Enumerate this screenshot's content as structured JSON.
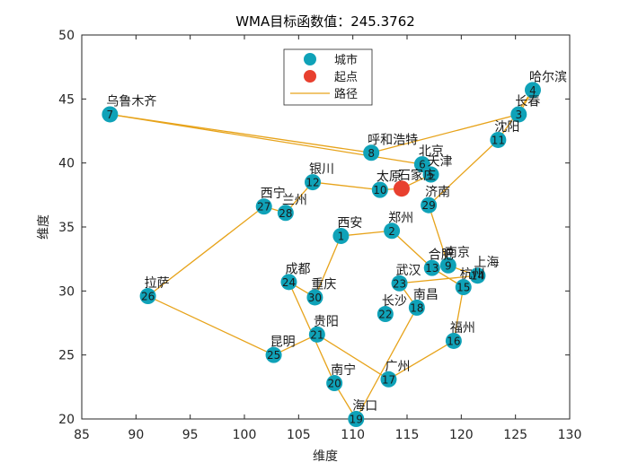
{
  "chart_data": {
    "type": "scatter",
    "title": "WMA目标函数值：245.3762",
    "xlabel": "维度",
    "ylabel": "维度",
    "xlim": [
      85,
      130
    ],
    "ylim": [
      20,
      50
    ],
    "xticks": [
      "85",
      "90",
      "95",
      "100",
      "105",
      "110",
      "115",
      "120",
      "125",
      "130"
    ],
    "yticks": [
      "20",
      "25",
      "30",
      "35",
      "40",
      "45",
      "50"
    ],
    "legend": {
      "position": "top-center",
      "entries": [
        {
          "label": "城市",
          "kind": "marker",
          "color": "#0fa2b8"
        },
        {
          "label": "起点",
          "kind": "marker",
          "color": "#e8402f"
        },
        {
          "label": "路径",
          "kind": "line",
          "color": "#e7a31a"
        }
      ]
    },
    "colors": {
      "city": "#0fa2b8",
      "start": "#e8402f",
      "path": "#e7a31a"
    },
    "start": {
      "name": "石家庄",
      "x": 114.5,
      "y": 38.0
    },
    "cities": [
      {
        "id": "1",
        "name": "西安",
        "x": 108.9,
        "y": 34.3
      },
      {
        "id": "2",
        "name": "郑州",
        "x": 113.6,
        "y": 34.7
      },
      {
        "id": "3",
        "name": "长春",
        "x": 125.3,
        "y": 43.8
      },
      {
        "id": "4",
        "name": "哈尔滨",
        "x": 126.6,
        "y": 45.7
      },
      {
        "id": "5",
        "name": "天津",
        "x": 117.2,
        "y": 39.1
      },
      {
        "id": "6",
        "name": "北京",
        "x": 116.4,
        "y": 39.9
      },
      {
        "id": "7",
        "name": "乌鲁木齐",
        "x": 87.6,
        "y": 43.8
      },
      {
        "id": "8",
        "name": "呼和浩特",
        "x": 111.7,
        "y": 40.8
      },
      {
        "id": "9",
        "name": "南京",
        "x": 118.8,
        "y": 32.0
      },
      {
        "id": "10",
        "name": "太原",
        "x": 112.5,
        "y": 37.9
      },
      {
        "id": "11",
        "name": "沈阳",
        "x": 123.4,
        "y": 41.8
      },
      {
        "id": "12",
        "name": "银川",
        "x": 106.3,
        "y": 38.5
      },
      {
        "id": "13",
        "name": "合肥",
        "x": 117.3,
        "y": 31.8
      },
      {
        "id": "14",
        "name": "上海",
        "x": 121.5,
        "y": 31.2
      },
      {
        "id": "15",
        "name": "杭州",
        "x": 120.2,
        "y": 30.3
      },
      {
        "id": "16",
        "name": "福州",
        "x": 119.3,
        "y": 26.1
      },
      {
        "id": "17",
        "name": "广州",
        "x": 113.3,
        "y": 23.1
      },
      {
        "id": "18",
        "name": "南昌",
        "x": 115.9,
        "y": 28.7
      },
      {
        "id": "19",
        "name": "海口",
        "x": 110.3,
        "y": 20.0
      },
      {
        "id": "20",
        "name": "南宁",
        "x": 108.3,
        "y": 22.8
      },
      {
        "id": "21",
        "name": "贵阳",
        "x": 106.7,
        "y": 26.6
      },
      {
        "id": "22",
        "name": "长沙",
        "x": 113.0,
        "y": 28.2
      },
      {
        "id": "23",
        "name": "武汉",
        "x": 114.3,
        "y": 30.6
      },
      {
        "id": "24",
        "name": "成都",
        "x": 104.1,
        "y": 30.7
      },
      {
        "id": "25",
        "name": "昆明",
        "x": 102.7,
        "y": 25.0
      },
      {
        "id": "26",
        "name": "拉萨",
        "x": 91.1,
        "y": 29.6
      },
      {
        "id": "27",
        "name": "西宁",
        "x": 101.8,
        "y": 36.6
      },
      {
        "id": "28",
        "name": "兰州",
        "x": 103.8,
        "y": 36.1
      },
      {
        "id": "29",
        "name": "济南",
        "x": 117.0,
        "y": 36.7
      },
      {
        "id": "30",
        "name": "重庆",
        "x": 106.5,
        "y": 29.5
      }
    ],
    "route": [
      "S",
      "10",
      "12",
      "28",
      "27",
      "26",
      "25",
      "21",
      "17",
      "16",
      "15",
      "13",
      "2",
      "1",
      "30",
      "24",
      "20",
      "19",
      "18",
      "23",
      "14",
      "9",
      "29",
      "11",
      "4",
      "3",
      "8",
      "7",
      "6",
      "5",
      "S"
    ]
  }
}
